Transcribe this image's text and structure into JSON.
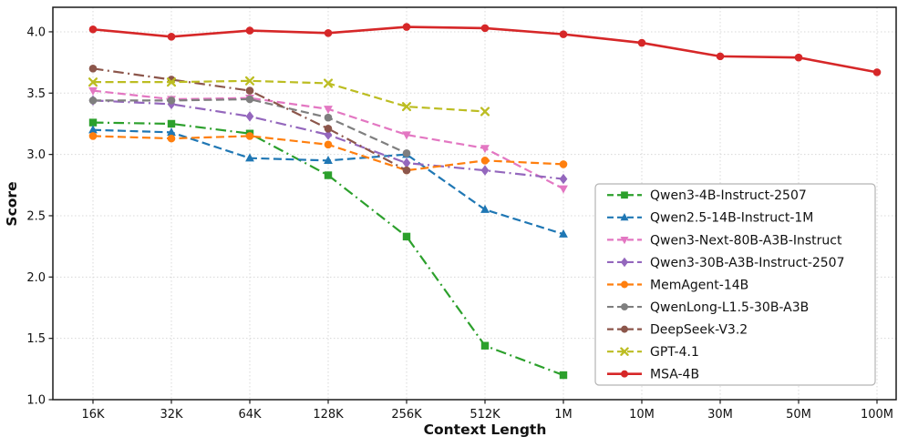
{
  "chart_data": {
    "type": "line",
    "title": "",
    "xlabel": "Context Length",
    "ylabel": "Score",
    "x_categories": [
      "16K",
      "32K",
      "64K",
      "128K",
      "256K",
      "512K",
      "1M",
      "10M",
      "30M",
      "50M",
      "100M"
    ],
    "ylim": [
      1.0,
      4.2
    ],
    "yticks": [
      1.0,
      1.5,
      2.0,
      2.5,
      3.0,
      3.5,
      4.0
    ],
    "ytick_labels": [
      "1.0",
      "1.5",
      "2.0",
      "2.5",
      "3.0",
      "3.5",
      "4.0"
    ],
    "grid": true,
    "grid_style": "dotted",
    "legend_position": "lower right",
    "series": [
      {
        "name": "Qwen3-4B-Instruct-2507",
        "color": "#2ca02c",
        "marker": "square",
        "linestyle": "dashdot",
        "values": [
          3.26,
          3.25,
          3.17,
          2.83,
          2.33,
          1.44,
          1.2
        ]
      },
      {
        "name": "Qwen2.5-14B-Instruct-1M",
        "color": "#1f77b4",
        "marker": "triangle-up",
        "linestyle": "dashed",
        "values": [
          3.2,
          3.18,
          2.97,
          2.95,
          3.0,
          2.55,
          2.35
        ]
      },
      {
        "name": "Qwen3-Next-80B-A3B-Instruct",
        "color": "#e377c2",
        "marker": "triangle-down",
        "linestyle": "dashed",
        "values": [
          3.52,
          3.45,
          3.46,
          3.37,
          3.16,
          3.05,
          2.72
        ]
      },
      {
        "name": "Qwen3-30B-A3B-Instruct-2507",
        "color": "#9467bd",
        "marker": "diamond",
        "linestyle": "dashdot",
        "values": [
          3.44,
          3.41,
          3.31,
          3.16,
          2.93,
          2.87,
          2.8
        ]
      },
      {
        "name": "MemAgent-14B",
        "color": "#ff7f0e",
        "marker": "circle",
        "linestyle": "dashed",
        "values": [
          3.15,
          3.13,
          3.15,
          3.08,
          2.87,
          2.95,
          2.92
        ]
      },
      {
        "name": "QwenLong-L1.5-30B-A3B",
        "color": "#7f7f7f",
        "marker": "circle",
        "linestyle": "dashed",
        "values": [
          3.44,
          3.44,
          3.45,
          3.3,
          3.01
        ]
      },
      {
        "name": "DeepSeek-V3.2",
        "color": "#8c564b",
        "marker": "circle",
        "linestyle": "dashdot",
        "values": [
          3.7,
          3.61,
          3.52,
          3.21,
          2.87
        ]
      },
      {
        "name": "GPT-4.1",
        "color": "#bcbd22",
        "marker": "x",
        "linestyle": "dashed",
        "values": [
          3.59,
          3.59,
          3.6,
          3.58,
          3.39,
          3.35
        ]
      },
      {
        "name": "MSA-4B",
        "color": "#d62728",
        "marker": "circle",
        "linestyle": "solid",
        "values": [
          4.02,
          3.96,
          4.01,
          3.99,
          4.04,
          4.03,
          3.98,
          3.91,
          3.8,
          3.79,
          3.67
        ]
      }
    ]
  }
}
